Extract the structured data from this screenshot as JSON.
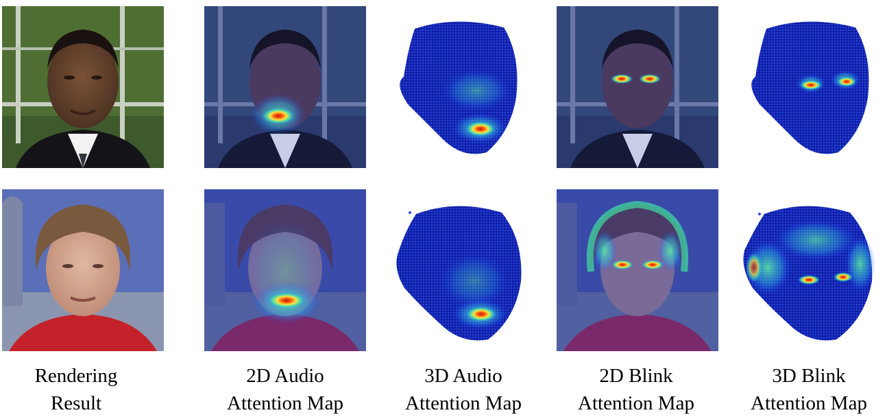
{
  "columns": [
    {
      "line1": "Rendering",
      "line2": "Result"
    },
    {
      "line1": "2D Audio",
      "line2": "Attention Map"
    },
    {
      "line1": "3D Audio",
      "line2": "Attention Map"
    },
    {
      "line1": "2D Blink",
      "line2": "Attention Map"
    },
    {
      "line1": "3D Blink",
      "line2": "Attention Map"
    }
  ],
  "colors": {
    "heat_low": "#1a2fb8",
    "heat_mid": "#3ad6a0",
    "heat_high": "#ff3a10"
  }
}
